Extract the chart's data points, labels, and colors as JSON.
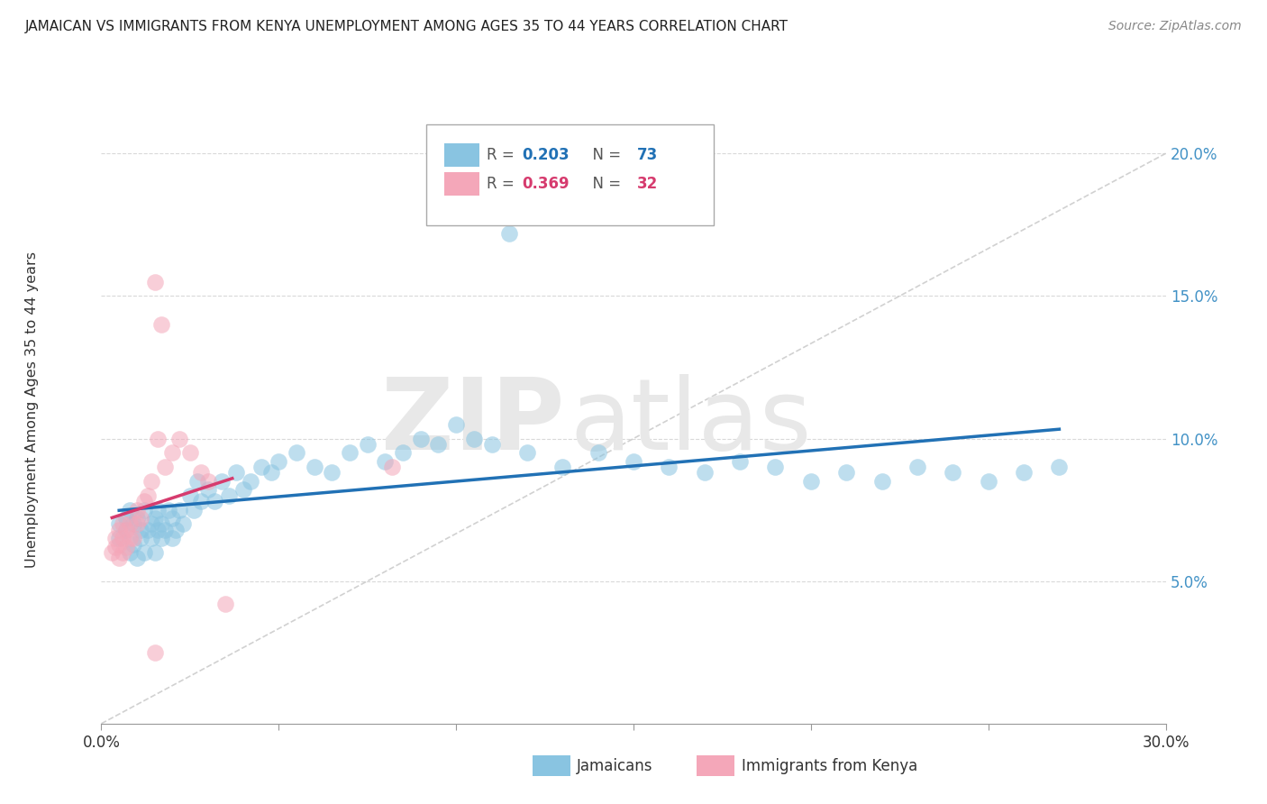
{
  "title": "JAMAICAN VS IMMIGRANTS FROM KENYA UNEMPLOYMENT AMONG AGES 35 TO 44 YEARS CORRELATION CHART",
  "source": "Source: ZipAtlas.com",
  "ylabel": "Unemployment Among Ages 35 to 44 years",
  "xlim": [
    0.0,
    0.3
  ],
  "ylim": [
    0.0,
    0.22
  ],
  "x_ticks": [
    0.0,
    0.05,
    0.1,
    0.15,
    0.2,
    0.25,
    0.3
  ],
  "x_tick_labels": [
    "0.0%",
    "",
    "",
    "",
    "",
    "",
    "30.0%"
  ],
  "y_ticks": [
    0.05,
    0.1,
    0.15,
    0.2
  ],
  "y_tick_labels": [
    "5.0%",
    "10.0%",
    "15.0%",
    "20.0%"
  ],
  "color_blue": "#89c4e1",
  "color_pink": "#f4a7b9",
  "line_blue": "#2171b5",
  "line_pink": "#d63b6e",
  "ref_line_color": "#cccccc",
  "grid_color": "#d9d9d9",
  "jamaicans_x": [
    0.005,
    0.005,
    0.007,
    0.007,
    0.008,
    0.008,
    0.009,
    0.009,
    0.01,
    0.01,
    0.011,
    0.011,
    0.012,
    0.012,
    0.013,
    0.014,
    0.014,
    0.015,
    0.015,
    0.016,
    0.016,
    0.017,
    0.017,
    0.018,
    0.019,
    0.02,
    0.02,
    0.021,
    0.022,
    0.023,
    0.025,
    0.026,
    0.027,
    0.028,
    0.03,
    0.032,
    0.034,
    0.036,
    0.038,
    0.04,
    0.042,
    0.045,
    0.048,
    0.05,
    0.055,
    0.06,
    0.065,
    0.07,
    0.075,
    0.08,
    0.085,
    0.09,
    0.095,
    0.1,
    0.105,
    0.11,
    0.115,
    0.12,
    0.13,
    0.14,
    0.15,
    0.16,
    0.17,
    0.18,
    0.19,
    0.2,
    0.21,
    0.22,
    0.23,
    0.24,
    0.25,
    0.26,
    0.27
  ],
  "jamaicans_y": [
    0.065,
    0.07,
    0.068,
    0.072,
    0.06,
    0.075,
    0.063,
    0.07,
    0.058,
    0.072,
    0.065,
    0.068,
    0.06,
    0.075,
    0.068,
    0.065,
    0.07,
    0.072,
    0.06,
    0.068,
    0.075,
    0.065,
    0.07,
    0.068,
    0.075,
    0.065,
    0.072,
    0.068,
    0.075,
    0.07,
    0.08,
    0.075,
    0.085,
    0.078,
    0.082,
    0.078,
    0.085,
    0.08,
    0.088,
    0.082,
    0.085,
    0.09,
    0.088,
    0.092,
    0.095,
    0.09,
    0.088,
    0.095,
    0.098,
    0.092,
    0.095,
    0.1,
    0.098,
    0.105,
    0.1,
    0.098,
    0.172,
    0.095,
    0.09,
    0.095,
    0.092,
    0.09,
    0.088,
    0.092,
    0.09,
    0.085,
    0.088,
    0.085,
    0.09,
    0.088,
    0.085,
    0.088,
    0.09
  ],
  "kenya_x": [
    0.003,
    0.004,
    0.004,
    0.005,
    0.005,
    0.005,
    0.006,
    0.006,
    0.006,
    0.007,
    0.007,
    0.008,
    0.008,
    0.009,
    0.01,
    0.01,
    0.011,
    0.012,
    0.013,
    0.014,
    0.015,
    0.016,
    0.017,
    0.018,
    0.02,
    0.022,
    0.025,
    0.028,
    0.03,
    0.035,
    0.082,
    0.015
  ],
  "kenya_y": [
    0.06,
    0.062,
    0.065,
    0.058,
    0.063,
    0.068,
    0.06,
    0.065,
    0.07,
    0.062,
    0.068,
    0.065,
    0.07,
    0.065,
    0.07,
    0.075,
    0.072,
    0.078,
    0.08,
    0.085,
    0.155,
    0.1,
    0.14,
    0.09,
    0.095,
    0.1,
    0.095,
    0.088,
    0.085,
    0.042,
    0.09,
    0.025
  ]
}
